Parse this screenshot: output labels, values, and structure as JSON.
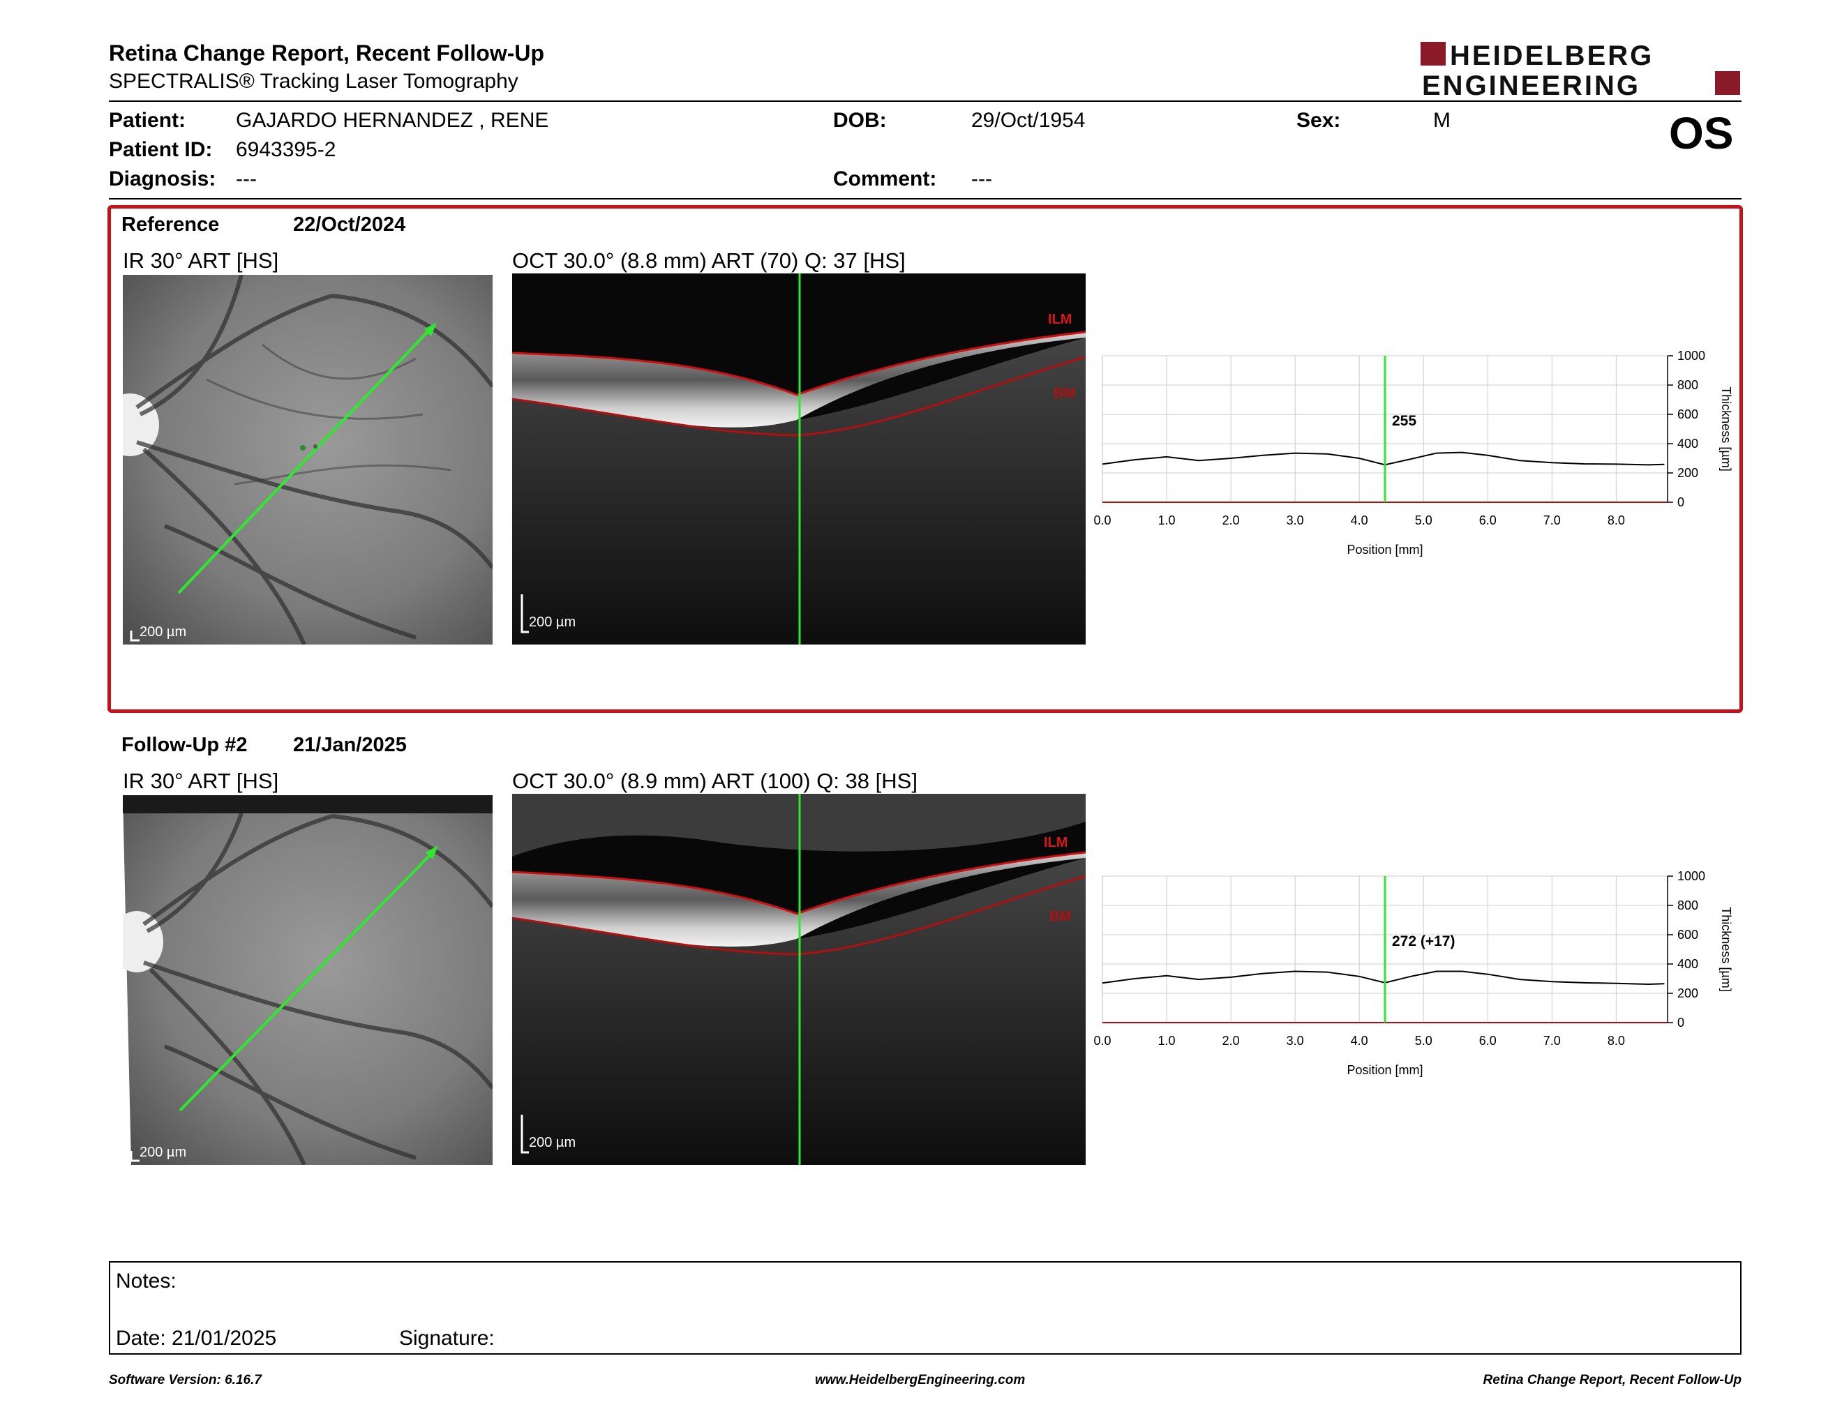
{
  "header": {
    "title": "Retina Change Report, Recent Follow-Up",
    "subtitle": "SPECTRALIS® Tracking Laser Tomography",
    "logo_line1": "HEIDELBERG",
    "logo_line2": "ENGINEERING",
    "eye": "OS"
  },
  "patient": {
    "name_label": "Patient:",
    "name": "GAJARDO HERNANDEZ , RENE",
    "id_label": "Patient ID:",
    "id": "6943395-2",
    "diagnosis_label": "Diagnosis:",
    "diagnosis": "---",
    "dob_label": "DOB:",
    "dob": "29/Oct/1954",
    "comment_label": "Comment:",
    "comment": "---",
    "sex_label": "Sex:",
    "sex": "M"
  },
  "reference": {
    "label": "Reference",
    "date": "22/Oct/2024",
    "ir_caption": "IR 30° ART [HS]",
    "oct_caption": "OCT 30.0° (8.8 mm) ART (70) Q: 37 [HS]",
    "ir_scale": "200 µm",
    "oct_scale": "200 µm",
    "ilm": "ILM",
    "bm": "BM"
  },
  "followup": {
    "label": "Follow-Up #2",
    "date": "21/Jan/2025",
    "ir_caption": "IR 30° ART [HS]",
    "oct_caption": "OCT 30.0° (8.9 mm) ART (100) Q: 38 [HS]",
    "ir_scale": "200 µm",
    "oct_scale": "200 µm",
    "ilm": "ILM",
    "bm": "BM"
  },
  "chart_data": [
    {
      "type": "line",
      "xlabel": "Position [mm]",
      "ylabel": "Thickness [µm]",
      "xlim": [
        0,
        8.8
      ],
      "ylim": [
        0,
        1000
      ],
      "xticks": [
        "0.0",
        "1.0",
        "2.0",
        "3.0",
        "4.0",
        "5.0",
        "6.0",
        "7.0",
        "8.0"
      ],
      "yticks": [
        "0",
        "200",
        "400",
        "600",
        "800",
        "1000"
      ],
      "marker_x": 4.4,
      "marker_label": "255",
      "series": [
        {
          "x": [
            0,
            0.5,
            1.0,
            1.5,
            2.0,
            2.5,
            3.0,
            3.5,
            4.0,
            4.4,
            4.8,
            5.2,
            5.6,
            6.0,
            6.5,
            7.0,
            7.5,
            8.0,
            8.5,
            8.75
          ],
          "values": [
            260,
            290,
            310,
            285,
            300,
            320,
            335,
            330,
            300,
            255,
            295,
            335,
            340,
            320,
            285,
            270,
            262,
            260,
            255,
            258
          ]
        }
      ]
    },
    {
      "type": "line",
      "xlabel": "Position [mm]",
      "ylabel": "Thickness [µm]",
      "xlim": [
        0,
        8.8
      ],
      "ylim": [
        0,
        1000
      ],
      "xticks": [
        "0.0",
        "1.0",
        "2.0",
        "3.0",
        "4.0",
        "5.0",
        "6.0",
        "7.0",
        "8.0"
      ],
      "yticks": [
        "0",
        "200",
        "400",
        "600",
        "800",
        "1000"
      ],
      "marker_x": 4.4,
      "marker_label": "272 (+17)",
      "series": [
        {
          "x": [
            0,
            0.5,
            1.0,
            1.5,
            2.0,
            2.5,
            3.0,
            3.5,
            4.0,
            4.4,
            4.8,
            5.2,
            5.6,
            6.0,
            6.5,
            7.0,
            7.5,
            8.0,
            8.5,
            8.75
          ],
          "values": [
            270,
            300,
            320,
            295,
            310,
            335,
            350,
            345,
            315,
            272,
            315,
            350,
            350,
            330,
            295,
            280,
            272,
            268,
            262,
            265
          ]
        }
      ]
    }
  ],
  "notes": {
    "notes_label": "Notes:",
    "date_label": "Date: 21/01/2025",
    "signature_label": "Signature:"
  },
  "footer": {
    "left": "Software Version: 6.16.7",
    "center": "www.HeidelbergEngineering.com",
    "right": "Retina Change Report, Recent Follow-Up"
  }
}
